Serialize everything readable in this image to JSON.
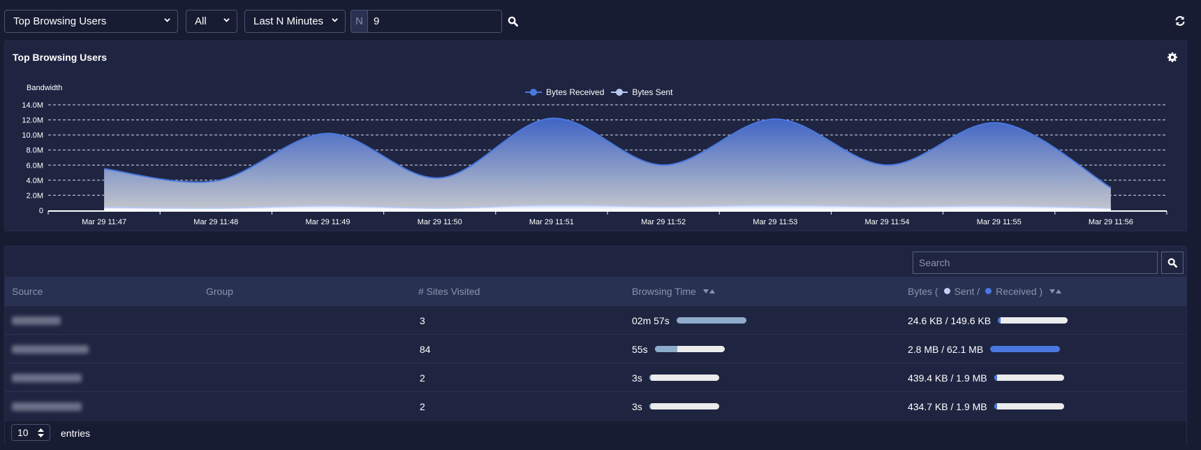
{
  "toolbar": {
    "report_select": "Top Browsing Users",
    "scope_select": "All",
    "range_select": "Last N Minutes",
    "n_addon": "N",
    "n_value": "9",
    "search_icon": "search-icon",
    "refresh_icon": "refresh-icon"
  },
  "chart_panel": {
    "title": "Top Browsing Users",
    "settings_icon": "gear-icon"
  },
  "chart_data": {
    "type": "area",
    "title": "Top Browsing Users",
    "xlabel": "",
    "ylabel": "Bandwidth",
    "x": [
      "Mar 29 11:47",
      "Mar 29 11:48",
      "Mar 29 11:49",
      "Mar 29 11:50",
      "Mar 29 11:51",
      "Mar 29 11:52",
      "Mar 29 11:53",
      "Mar 29 11:54",
      "Mar 29 11:55",
      "Mar 29 11:56"
    ],
    "yticks": [
      "0",
      "2.0M",
      "4.0M",
      "6.0M",
      "8.0M",
      "10.0M",
      "12.0M",
      "14.0M"
    ],
    "ylim": [
      0,
      14000000
    ],
    "grid": true,
    "legend_position": "top",
    "series": [
      {
        "name": "Bytes Received",
        "color": "#4a78e0",
        "values": [
          5500000,
          3900000,
          10200000,
          4300000,
          12200000,
          6000000,
          12100000,
          6000000,
          11600000,
          3000000
        ]
      },
      {
        "name": "Bytes Sent",
        "color": "#b8c8f0",
        "values": [
          400000,
          300000,
          600000,
          300000,
          700000,
          500000,
          700000,
          500000,
          600000,
          300000
        ]
      }
    ]
  },
  "table": {
    "search_placeholder": "Search",
    "columns": {
      "source": "Source",
      "group": "Group",
      "sites": "# Sites Visited",
      "browsing_time": "Browsing Time",
      "bytes_prefix": "Bytes (",
      "bytes_sent": "Sent /",
      "bytes_received": "Received )"
    },
    "colors": {
      "sent": "#c2d0f5",
      "received": "#4a78e0",
      "time": "#8eabca"
    },
    "rows": [
      {
        "source": "10.20.1.112",
        "group": "",
        "sites": "3",
        "time": "02m 57s",
        "time_pct": 100,
        "bytes": "24.6 KB / 149.6 KB",
        "bytes_pct": 2
      },
      {
        "source": "[redacted] 10.2.40.117",
        "group": "",
        "sites": "84",
        "time": "55s",
        "time_pct": 32,
        "bytes": "2.8 MB / 62.1 MB",
        "bytes_pct": 100
      },
      {
        "source": "[redacted] 10.2.40.63",
        "group": "",
        "sites": "2",
        "time": "3s",
        "time_pct": 2,
        "bytes": "439.4 KB / 1.9 MB",
        "bytes_pct": 3
      },
      {
        "source": "[redacted] 10.2.40.65",
        "group": "",
        "sites": "2",
        "time": "3s",
        "time_pct": 2,
        "bytes": "434.7 KB / 1.9 MB",
        "bytes_pct": 3
      }
    ],
    "page_length": "10",
    "entries_label": "entries"
  }
}
